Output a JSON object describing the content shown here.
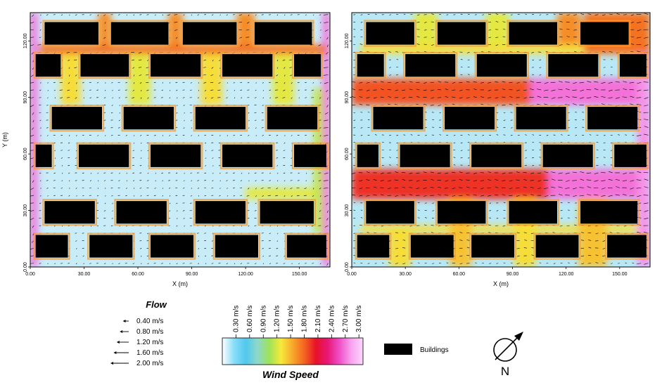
{
  "chart_data": [
    {
      "type": "heatmap",
      "xlabel": "X (m)",
      "ylabel": "Y (m)",
      "xlim": [
        0,
        150
      ],
      "ylim": [
        0,
        135
      ],
      "xticks": [
        "0.00",
        "30.00",
        "60.00",
        "90.00",
        "120.00",
        "150.00"
      ],
      "yticks": [
        "0.00",
        "30.00",
        "60.00",
        "90.00",
        "120.00"
      ],
      "buildings": [
        {
          "x0": 8,
          "x1": 38,
          "y0": 118,
          "y1": 130
        },
        {
          "x0": 45,
          "x1": 77,
          "y0": 118,
          "y1": 130
        },
        {
          "x0": 85,
          "x1": 115,
          "y0": 118,
          "y1": 130
        },
        {
          "x0": 125,
          "x1": 157,
          "y0": 118,
          "y1": 130
        },
        {
          "x0": 3,
          "x1": 17,
          "y0": 101,
          "y1": 113
        },
        {
          "x0": 28,
          "x1": 55,
          "y0": 101,
          "y1": 113
        },
        {
          "x0": 67,
          "x1": 95,
          "y0": 101,
          "y1": 113
        },
        {
          "x0": 107,
          "x1": 135,
          "y0": 101,
          "y1": 113
        },
        {
          "x0": 147,
          "x1": 162,
          "y0": 101,
          "y1": 113
        },
        {
          "x0": 12,
          "x1": 40,
          "y0": 73,
          "y1": 85
        },
        {
          "x0": 52,
          "x1": 80,
          "y0": 73,
          "y1": 85
        },
        {
          "x0": 92,
          "x1": 120,
          "y0": 73,
          "y1": 85
        },
        {
          "x0": 132,
          "x1": 160,
          "y0": 73,
          "y1": 85
        },
        {
          "x0": 3,
          "x1": 12,
          "y0": 53,
          "y1": 65
        },
        {
          "x0": 27,
          "x1": 55,
          "y0": 53,
          "y1": 65
        },
        {
          "x0": 67,
          "x1": 95,
          "y0": 53,
          "y1": 65
        },
        {
          "x0": 107,
          "x1": 135,
          "y0": 53,
          "y1": 65
        },
        {
          "x0": 147,
          "x1": 165,
          "y0": 53,
          "y1": 65
        },
        {
          "x0": 8,
          "x1": 36,
          "y0": 23,
          "y1": 35
        },
        {
          "x0": 48,
          "x1": 76,
          "y0": 23,
          "y1": 35
        },
        {
          "x0": 92,
          "x1": 120,
          "y0": 23,
          "y1": 35
        },
        {
          "x0": 128,
          "x1": 158,
          "y0": 23,
          "y1": 35
        },
        {
          "x0": 3,
          "x1": 21,
          "y0": 5,
          "y1": 17
        },
        {
          "x0": 33,
          "x1": 57,
          "y0": 5,
          "y1": 17
        },
        {
          "x0": 67,
          "x1": 91,
          "y0": 5,
          "y1": 17
        },
        {
          "x0": 103,
          "x1": 127,
          "y0": 5,
          "y1": 17
        },
        {
          "x0": 143,
          "x1": 165,
          "y0": 5,
          "y1": 17
        }
      ],
      "high_speed_zones": [
        {
          "x0": 0,
          "x1": 4,
          "y0": 0,
          "y1": 135,
          "speed": 2.6
        },
        {
          "x0": 163,
          "x1": 167,
          "y0": 0,
          "y1": 135,
          "speed": 2.6
        },
        {
          "x0": 5,
          "x1": 165,
          "y0": 113,
          "y1": 118,
          "speed": 1.7
        },
        {
          "x0": 38,
          "x1": 45,
          "y0": 118,
          "y1": 135,
          "speed": 1.6
        },
        {
          "x0": 77,
          "x1": 85,
          "y0": 118,
          "y1": 135,
          "speed": 1.6
        },
        {
          "x0": 115,
          "x1": 125,
          "y0": 118,
          "y1": 135,
          "speed": 1.6
        },
        {
          "x0": 17,
          "x1": 28,
          "y0": 86,
          "y1": 113,
          "speed": 1.3
        },
        {
          "x0": 55,
          "x1": 67,
          "y0": 86,
          "y1": 113,
          "speed": 1.2
        },
        {
          "x0": 95,
          "x1": 107,
          "y0": 86,
          "y1": 113,
          "speed": 1.3
        },
        {
          "x0": 135,
          "x1": 147,
          "y0": 86,
          "y1": 113,
          "speed": 1.2
        },
        {
          "x0": 120,
          "x1": 162,
          "y0": 36,
          "y1": 42,
          "speed": 1.2
        },
        {
          "x0": 158,
          "x1": 163,
          "y0": 18,
          "y1": 95,
          "speed": 1.1
        }
      ]
    },
    {
      "type": "heatmap",
      "xlabel": "X (m)",
      "ylabel": "",
      "xlim": [
        0,
        150
      ],
      "ylim": [
        0,
        135
      ],
      "xticks": [
        "0.00",
        "30.00",
        "60.00",
        "90.00",
        "120.00",
        "150.00"
      ],
      "yticks": [
        "0.00",
        "30.00",
        "60.00",
        "90.00",
        "120.00"
      ],
      "buildings": [
        {
          "x0": 8,
          "x1": 35,
          "y0": 118,
          "y1": 130
        },
        {
          "x0": 48,
          "x1": 75,
          "y0": 118,
          "y1": 130
        },
        {
          "x0": 88,
          "x1": 115,
          "y0": 118,
          "y1": 130
        },
        {
          "x0": 128,
          "x1": 155,
          "y0": 118,
          "y1": 130
        },
        {
          "x0": 3,
          "x1": 18,
          "y0": 101,
          "y1": 113
        },
        {
          "x0": 30,
          "x1": 58,
          "y0": 101,
          "y1": 113
        },
        {
          "x0": 70,
          "x1": 98,
          "y0": 101,
          "y1": 113
        },
        {
          "x0": 110,
          "x1": 138,
          "y0": 101,
          "y1": 113
        },
        {
          "x0": 150,
          "x1": 165,
          "y0": 101,
          "y1": 113
        },
        {
          "x0": 12,
          "x1": 40,
          "y0": 73,
          "y1": 85
        },
        {
          "x0": 52,
          "x1": 80,
          "y0": 73,
          "y1": 85
        },
        {
          "x0": 92,
          "x1": 120,
          "y0": 73,
          "y1": 85
        },
        {
          "x0": 132,
          "x1": 160,
          "y0": 73,
          "y1": 85
        },
        {
          "x0": 3,
          "x1": 15,
          "y0": 53,
          "y1": 65
        },
        {
          "x0": 27,
          "x1": 55,
          "y0": 53,
          "y1": 65
        },
        {
          "x0": 67,
          "x1": 95,
          "y0": 53,
          "y1": 65
        },
        {
          "x0": 107,
          "x1": 135,
          "y0": 53,
          "y1": 65
        },
        {
          "x0": 147,
          "x1": 165,
          "y0": 53,
          "y1": 65
        },
        {
          "x0": 8,
          "x1": 35,
          "y0": 23,
          "y1": 35
        },
        {
          "x0": 48,
          "x1": 75,
          "y0": 23,
          "y1": 35
        },
        {
          "x0": 88,
          "x1": 115,
          "y0": 23,
          "y1": 35
        },
        {
          "x0": 128,
          "x1": 160,
          "y0": 23,
          "y1": 35
        },
        {
          "x0": 3,
          "x1": 21,
          "y0": 5,
          "y1": 17
        },
        {
          "x0": 33,
          "x1": 57,
          "y0": 5,
          "y1": 17
        },
        {
          "x0": 67,
          "x1": 91,
          "y0": 5,
          "y1": 17
        },
        {
          "x0": 103,
          "x1": 127,
          "y0": 5,
          "y1": 17
        },
        {
          "x0": 143,
          "x1": 165,
          "y0": 5,
          "y1": 17
        }
      ],
      "high_speed_zones": [
        {
          "x0": 0,
          "x1": 167,
          "y0": 86,
          "y1": 100,
          "speed": 1.8
        },
        {
          "x0": 100,
          "x1": 167,
          "y0": 86,
          "y1": 100,
          "speed": 2.6
        },
        {
          "x0": 0,
          "x1": 167,
          "y0": 36,
          "y1": 52,
          "speed": 1.9
        },
        {
          "x0": 110,
          "x1": 167,
          "y0": 36,
          "y1": 52,
          "speed": 2.6
        },
        {
          "x0": 5,
          "x1": 165,
          "y0": 18,
          "y1": 22,
          "speed": 1.3
        },
        {
          "x0": 160,
          "x1": 167,
          "y0": 0,
          "y1": 135,
          "speed": 2.7
        },
        {
          "x0": 5,
          "x1": 165,
          "y0": 113,
          "y1": 118,
          "speed": 1.3
        },
        {
          "x0": 130,
          "x1": 167,
          "y0": 113,
          "y1": 135,
          "speed": 1.7
        },
        {
          "x0": 35,
          "x1": 48,
          "y0": 118,
          "y1": 135,
          "speed": 1.2
        },
        {
          "x0": 75,
          "x1": 88,
          "y0": 118,
          "y1": 135,
          "speed": 1.2
        },
        {
          "x0": 115,
          "x1": 128,
          "y0": 118,
          "y1": 135,
          "speed": 1.6
        },
        {
          "x0": 55,
          "x1": 67,
          "y0": 0,
          "y1": 36,
          "speed": 1.4
        },
        {
          "x0": 21,
          "x1": 33,
          "y0": 0,
          "y1": 22,
          "speed": 1.3
        },
        {
          "x0": 91,
          "x1": 103,
          "y0": 0,
          "y1": 36,
          "speed": 1.3
        },
        {
          "x0": 127,
          "x1": 143,
          "y0": 0,
          "y1": 36,
          "speed": 1.4
        }
      ]
    }
  ],
  "legend": {
    "flow_title": "Flow",
    "flow_items": [
      {
        "label": "0.40 m/s",
        "speed": 0.4
      },
      {
        "label": "0.80 m/s",
        "speed": 0.8
      },
      {
        "label": "1.20 m/s",
        "speed": 1.2
      },
      {
        "label": "1.60 m/s",
        "speed": 1.6
      },
      {
        "label": "2.00 m/s",
        "speed": 2.0
      }
    ],
    "colorbar_title": "Wind Speed",
    "colorbar_ticks": [
      "0.30 m/s",
      "0.60 m/s",
      "0.90 m/s",
      "1.20 m/s",
      "1.50 m/s",
      "1.80 m/s",
      "2.10 m/s",
      "2.40 m/s",
      "2.70 m/s",
      "3.00 m/s"
    ],
    "colorbar_colors": [
      "#ffffff",
      "#88ddf8",
      "#50c8ee",
      "#8ed8c8",
      "#9ee25a",
      "#f6ea3a",
      "#f8a82a",
      "#f46420",
      "#e8102a",
      "#e81878",
      "#f050c8",
      "#f8a4f0",
      "#fcd8fc"
    ],
    "buildings_label": "Buildings",
    "north_label": "N"
  }
}
